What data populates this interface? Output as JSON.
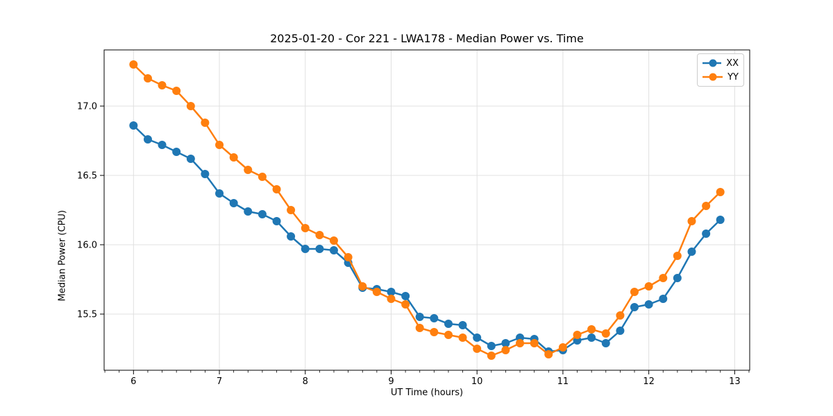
{
  "chart_data": {
    "type": "line",
    "title": "2025-01-20 - Cor 221 - LWA178 - Median Power vs. Time",
    "xlabel": "UT Time (hours)",
    "ylabel": "Median Power (CPU)",
    "xlim": [
      5.658,
      13.175
    ],
    "ylim": [
      15.095,
      17.405
    ],
    "x_ticks": [
      6,
      7,
      8,
      9,
      10,
      11,
      12,
      13
    ],
    "x_tick_labels": [
      "6",
      "7",
      "8",
      "9",
      "10",
      "11",
      "12",
      "13"
    ],
    "x_minor_tick_step": 0.166667,
    "y_ticks": [
      15.5,
      16.0,
      16.5,
      17.0
    ],
    "y_tick_labels": [
      "15.5",
      "16.0",
      "16.5",
      "17.0"
    ],
    "grid": true,
    "grid_color": "#e0e0e0",
    "spine_color": "#000000",
    "legend_position": "upper right",
    "x": [
      6.0,
      6.167,
      6.333,
      6.5,
      6.667,
      6.833,
      7.0,
      7.167,
      7.333,
      7.5,
      7.667,
      7.833,
      8.0,
      8.167,
      8.333,
      8.5,
      8.667,
      8.833,
      9.0,
      9.167,
      9.333,
      9.5,
      9.667,
      9.833,
      10.0,
      10.167,
      10.333,
      10.5,
      10.667,
      10.833,
      11.0,
      11.167,
      11.333,
      11.5,
      11.667,
      11.833,
      12.0,
      12.167,
      12.333,
      12.5,
      12.667,
      12.833
    ],
    "series": [
      {
        "name": "XX",
        "color": "#1f77b4",
        "values": [
          16.86,
          16.76,
          16.72,
          16.67,
          16.62,
          16.51,
          16.37,
          16.3,
          16.24,
          16.22,
          16.17,
          16.06,
          15.97,
          15.97,
          15.96,
          15.87,
          15.69,
          15.68,
          15.66,
          15.63,
          15.48,
          15.47,
          15.43,
          15.42,
          15.33,
          15.27,
          15.29,
          15.33,
          15.32,
          15.23,
          15.24,
          15.31,
          15.33,
          15.29,
          15.38,
          15.55,
          15.57,
          15.61,
          15.76,
          15.95,
          16.08,
          16.18
        ]
      },
      {
        "name": "YY",
        "color": "#ff7f0e",
        "values": [
          17.3,
          17.2,
          17.15,
          17.11,
          17.0,
          16.88,
          16.72,
          16.63,
          16.54,
          16.49,
          16.4,
          16.25,
          16.12,
          16.07,
          16.03,
          15.91,
          15.7,
          15.66,
          15.61,
          15.57,
          15.4,
          15.37,
          15.35,
          15.33,
          15.25,
          15.2,
          15.24,
          15.29,
          15.29,
          15.21,
          15.26,
          15.35,
          15.39,
          15.36,
          15.49,
          15.66,
          15.7,
          15.76,
          15.92,
          16.17,
          16.28,
          16.38
        ]
      }
    ]
  }
}
